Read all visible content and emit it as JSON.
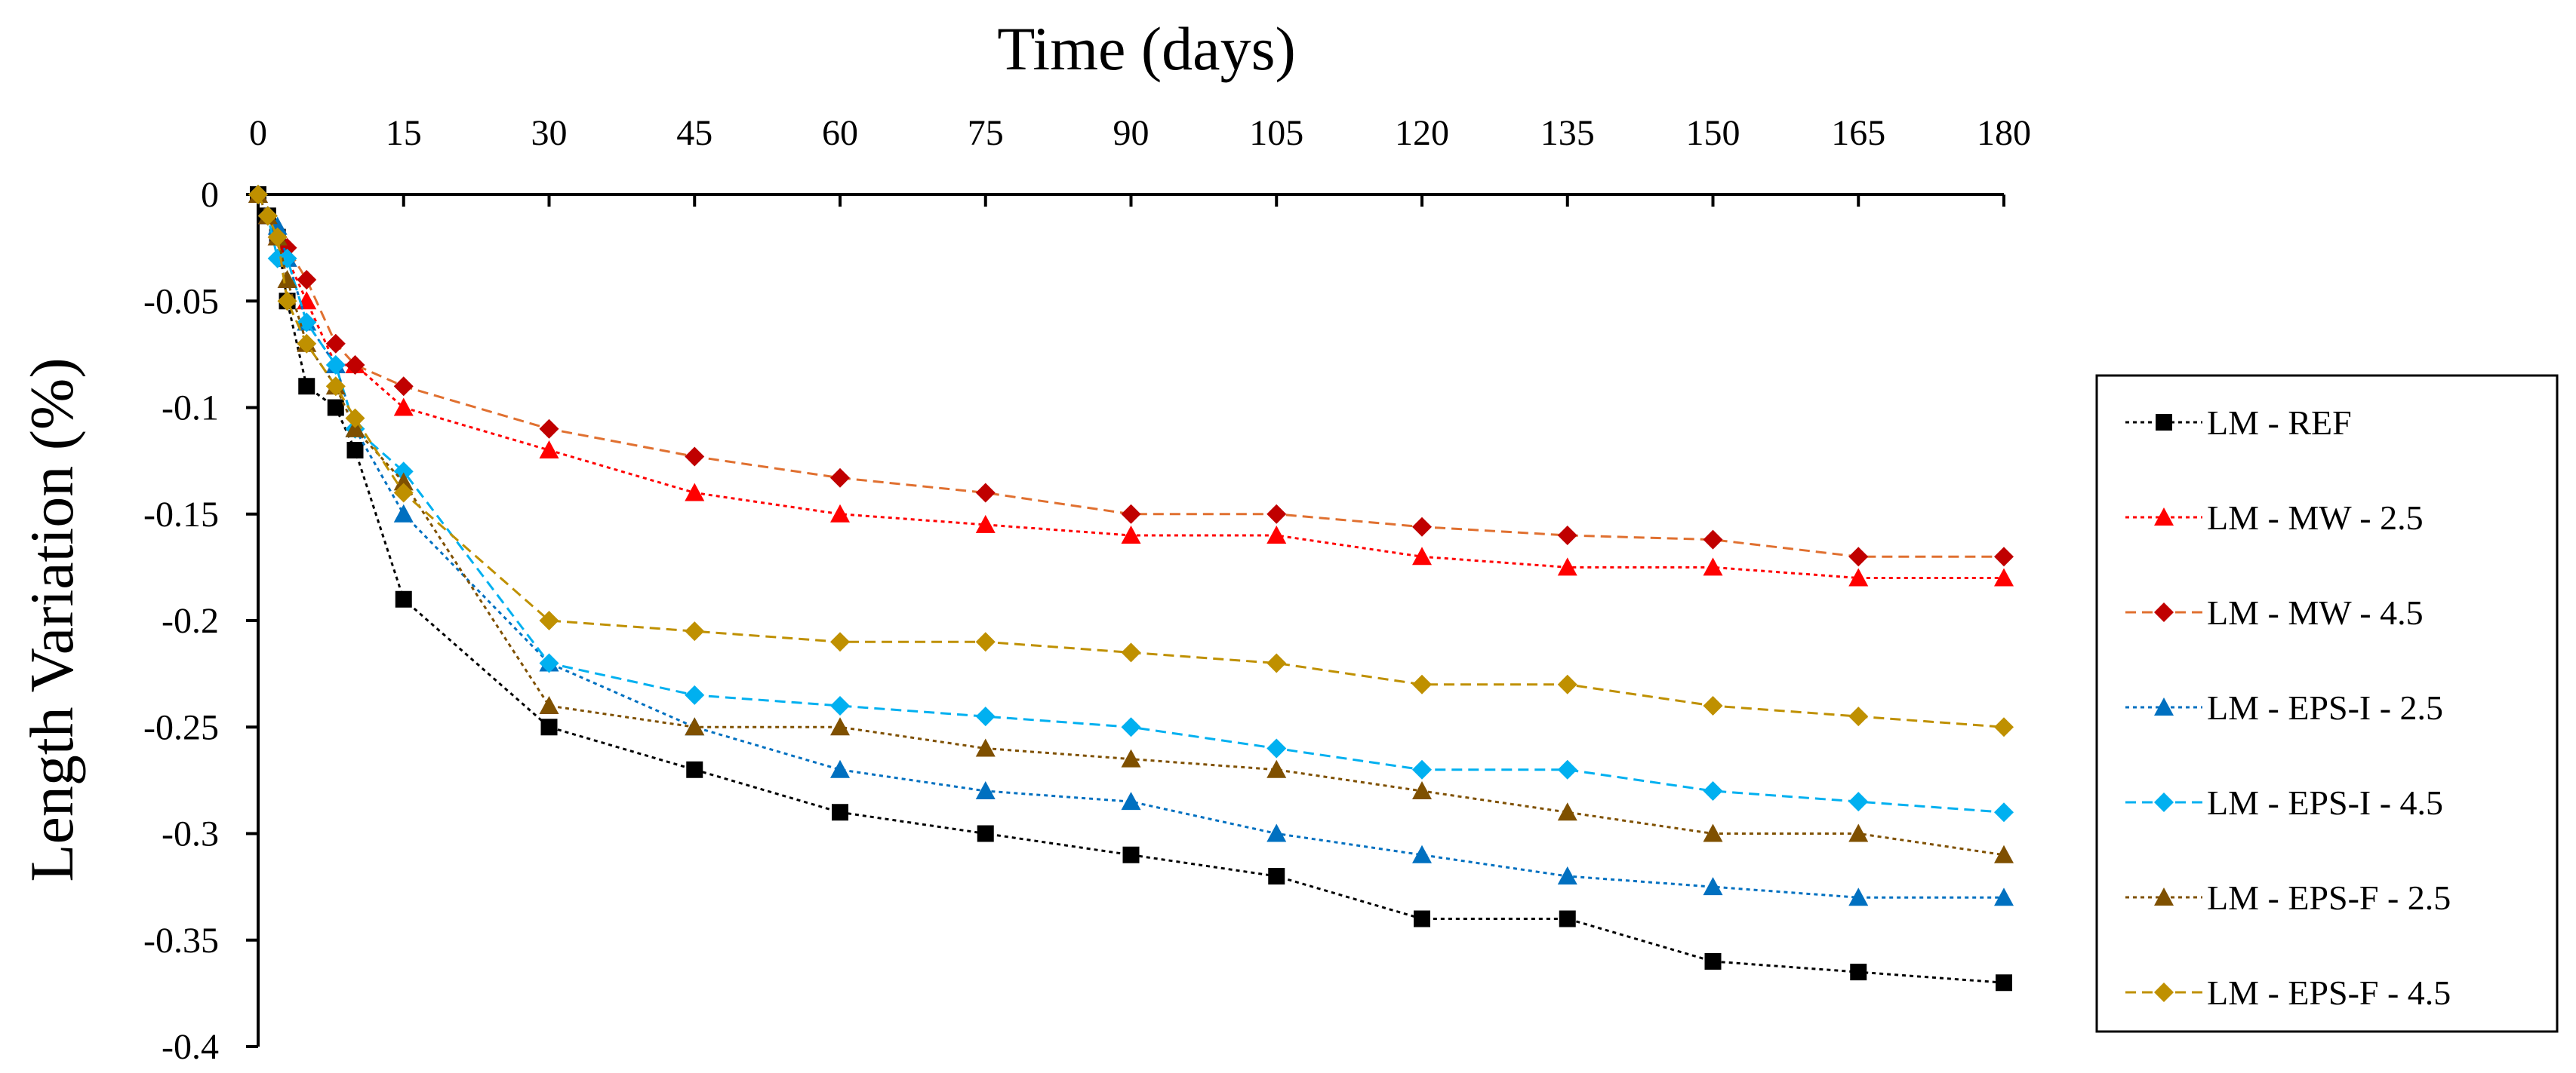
{
  "chart_data": {
    "type": "line",
    "title": "Time (days)",
    "xlabel": "Time (days)",
    "ylabel": "Length Variation (%)",
    "x_axis_position": "top",
    "xlim": [
      0,
      180
    ],
    "ylim": [
      -0.4,
      0
    ],
    "x_ticks": [
      0,
      15,
      30,
      45,
      60,
      75,
      90,
      105,
      120,
      135,
      150,
      165,
      180
    ],
    "x_tick_labels": [
      "0",
      "15",
      "30",
      "45",
      "60",
      "75",
      "90",
      "105",
      "120",
      "135",
      "150",
      "165",
      "180"
    ],
    "y_ticks": [
      0,
      -0.05,
      -0.1,
      -0.15,
      -0.2,
      -0.25,
      -0.3,
      -0.35,
      -0.4
    ],
    "y_tick_labels": [
      "0",
      "-0.05",
      "-0.1",
      "-0.15",
      "-0.2",
      "-0.25",
      "-0.3",
      "-0.35",
      "-0.4"
    ],
    "grid": false,
    "legend_position": "right",
    "x": [
      0,
      1,
      2,
      3,
      5,
      8,
      10,
      15,
      30,
      45,
      60,
      75,
      90,
      105,
      120,
      135,
      150,
      165,
      180
    ],
    "series": [
      {
        "name": "LM - REF",
        "color": "#000000",
        "marker": "square",
        "line_style": "dotted",
        "values": [
          0,
          -0.01,
          -0.02,
          -0.05,
          -0.09,
          -0.1,
          -0.12,
          -0.19,
          -0.25,
          -0.27,
          -0.29,
          -0.3,
          -0.31,
          -0.32,
          -0.34,
          -0.34,
          -0.36,
          -0.365,
          -0.37
        ]
      },
      {
        "name": "LM - MW - 2.5",
        "color": "#ff0000",
        "marker": "triangle",
        "line_style": "dotted",
        "values": [
          0,
          -0.01,
          -0.02,
          -0.03,
          -0.05,
          -0.08,
          -0.08,
          -0.1,
          -0.12,
          -0.14,
          -0.15,
          -0.155,
          -0.16,
          -0.16,
          -0.17,
          -0.175,
          -0.175,
          -0.18,
          -0.18
        ]
      },
      {
        "name": "LM - MW - 4.5",
        "color": "#c00000",
        "line_color": "#e07030",
        "marker": "diamond",
        "line_style": "dashed",
        "values": [
          0,
          -0.01,
          -0.02,
          -0.025,
          -0.04,
          -0.07,
          -0.08,
          -0.09,
          -0.11,
          -0.123,
          -0.133,
          -0.14,
          -0.15,
          -0.15,
          -0.156,
          -0.16,
          -0.162,
          -0.17,
          -0.17
        ]
      },
      {
        "name": "LM - EPS-I - 2.5",
        "color": "#0070c0",
        "marker": "triangle",
        "line_style": "dotted",
        "values": [
          0,
          -0.01,
          -0.015,
          -0.03,
          -0.06,
          -0.08,
          -0.11,
          -0.15,
          -0.22,
          -0.25,
          -0.27,
          -0.28,
          -0.285,
          -0.3,
          -0.31,
          -0.32,
          -0.325,
          -0.33,
          -0.33
        ]
      },
      {
        "name": "LM - EPS-I - 4.5",
        "color": "#00b0f0",
        "marker": "diamond",
        "line_style": "dashed",
        "values": [
          0,
          -0.01,
          -0.03,
          -0.03,
          -0.06,
          -0.08,
          -0.11,
          -0.13,
          -0.22,
          -0.235,
          -0.24,
          -0.245,
          -0.25,
          -0.26,
          -0.27,
          -0.27,
          -0.28,
          -0.285,
          -0.29
        ]
      },
      {
        "name": "LM - EPS-F - 2.5",
        "color": "#7f5000",
        "marker": "triangle",
        "line_style": "dotted",
        "values": [
          0,
          -0.01,
          -0.02,
          -0.04,
          -0.07,
          -0.09,
          -0.11,
          -0.135,
          -0.24,
          -0.25,
          -0.25,
          -0.26,
          -0.265,
          -0.27,
          -0.28,
          -0.29,
          -0.3,
          -0.3,
          -0.31
        ]
      },
      {
        "name": "LM - EPS-F - 4.5",
        "color": "#bf9000",
        "marker": "diamond",
        "line_style": "dashed",
        "values": [
          0,
          -0.01,
          -0.02,
          -0.05,
          -0.07,
          -0.09,
          -0.105,
          -0.14,
          -0.2,
          -0.205,
          -0.21,
          -0.21,
          -0.215,
          -0.22,
          -0.23,
          -0.23,
          -0.24,
          -0.245,
          -0.25
        ]
      }
    ]
  }
}
